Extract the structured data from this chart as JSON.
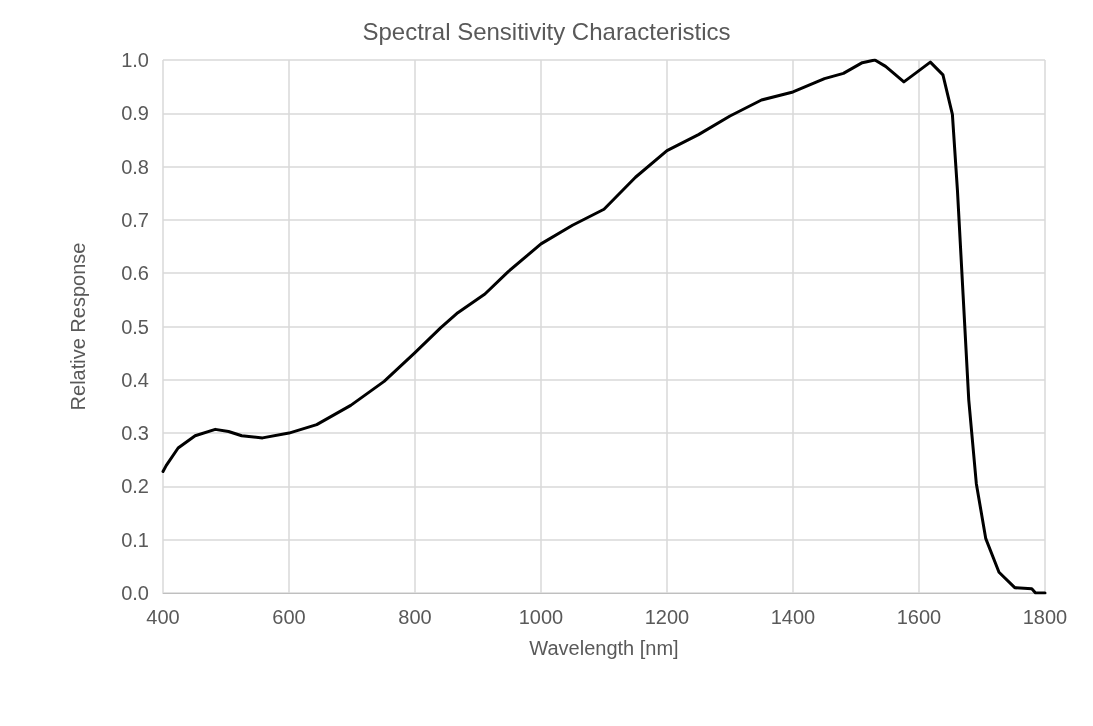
{
  "chart_data": {
    "type": "line",
    "title": "Spectral Sensitivity Characteristics",
    "xlabel": "Wavelength [nm]",
    "ylabel": "Relative Response",
    "xlim": [
      400,
      1800
    ],
    "xticks": [
      400,
      600,
      800,
      1000,
      1200,
      1400,
      1600,
      1800
    ],
    "ylim": [
      0,
      1
    ],
    "yticks": [
      {
        "value": 0,
        "label": "0.0"
      },
      0.1,
      0.2,
      0.3,
      0.4,
      0.5,
      0.6,
      0.7,
      0.8,
      0.9,
      {
        "value": 1,
        "label": "1.0"
      }
    ],
    "grid": true,
    "marker": "none",
    "line_style": "solid",
    "series": [
      {
        "color": "#000000",
        "x": [
          400,
          405,
          424,
          451,
          483,
          504,
          525,
          558,
          600,
          644,
          698,
          751,
          800,
          841,
          868,
          911,
          948,
          1000,
          1050,
          1100,
          1150,
          1200,
          1250,
          1300,
          1350,
          1400,
          1450,
          1480,
          1510,
          1530,
          1547,
          1576,
          1600,
          1618,
          1638,
          1653,
          1661,
          1670,
          1679,
          1691,
          1706,
          1727,
          1752,
          1779,
          1785,
          1800
        ],
        "values": [
          0.228,
          0.239,
          0.272,
          0.295,
          0.307,
          0.303,
          0.295,
          0.291,
          0.3,
          0.316,
          0.352,
          0.397,
          0.451,
          0.498,
          0.526,
          0.561,
          0.603,
          0.655,
          0.69,
          0.72,
          0.78,
          0.83,
          0.86,
          0.895,
          0.925,
          0.94,
          0.965,
          0.975,
          0.995,
          1.0,
          0.988,
          0.959,
          0.98,
          0.996,
          0.972,
          0.898,
          0.756,
          0.559,
          0.362,
          0.205,
          0.102,
          0.039,
          0.01,
          0.008,
          0,
          0
        ]
      }
    ]
  }
}
